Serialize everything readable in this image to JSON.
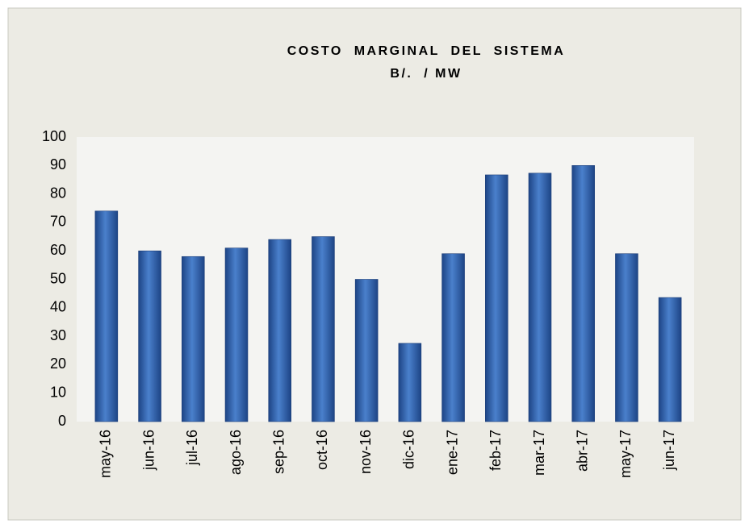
{
  "chart_data": {
    "type": "bar",
    "title": "COSTO  MARGINAL  DEL  SISTEMA",
    "subtitle": "B/.  / MW",
    "categories": [
      "may-16",
      "jun-16",
      "jul-16",
      "ago-16",
      "sep-16",
      "oct-16",
      "nov-16",
      "dic-16",
      "ene-17",
      "feb-17",
      "mar-17",
      "abr-17",
      "may-17",
      "jun-17"
    ],
    "values": [
      74,
      60,
      58,
      61,
      64,
      65,
      50,
      27.5,
      59,
      86.7,
      87.3,
      90,
      59,
      43.6
    ],
    "color": "#4a80cc",
    "ylim": [
      0,
      100
    ],
    "yticks": [
      0,
      10,
      20,
      30,
      40,
      50,
      60,
      70,
      80,
      90,
      100
    ],
    "grid": false
  }
}
